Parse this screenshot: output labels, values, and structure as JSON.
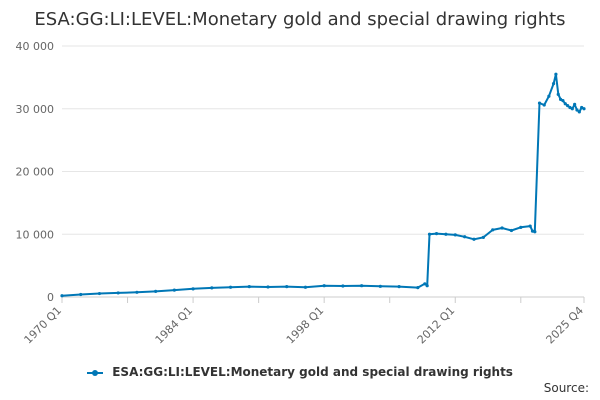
{
  "chart_data": {
    "type": "line",
    "title": "ESA:GG:LI:LEVEL:Monetary gold and special drawing rights",
    "xlabel": "",
    "ylabel": "",
    "ylim": [
      0,
      40000
    ],
    "yticks": [
      0,
      10000,
      20000,
      30000,
      40000
    ],
    "ytick_labels": [
      "0",
      "10 000",
      "20 000",
      "30 000",
      "40 000"
    ],
    "xrange": [
      "1970 Q1",
      "2025 Q4"
    ],
    "xticks": [
      "1970 Q1",
      "1984 Q1",
      "1998 Q1",
      "2012 Q1",
      "2025 Q4"
    ],
    "grid": true,
    "legend_position": "bottom",
    "series": [
      {
        "name": "ESA:GG:LI:LEVEL:Monetary gold and special drawing rights",
        "color": "#0077b6",
        "x": [
          "1970 Q1",
          "1972 Q1",
          "1974 Q1",
          "1976 Q1",
          "1978 Q1",
          "1980 Q1",
          "1982 Q1",
          "1984 Q1",
          "1986 Q1",
          "1988 Q1",
          "1990 Q1",
          "1992 Q1",
          "1994 Q1",
          "1996 Q1",
          "1998 Q1",
          "2000 Q1",
          "2002 Q1",
          "2004 Q1",
          "2006 Q1",
          "2008 Q1",
          "2008 Q4",
          "2009 Q1",
          "2009 Q2",
          "2010 Q1",
          "2011 Q1",
          "2012 Q1",
          "2013 Q1",
          "2014 Q1",
          "2015 Q1",
          "2016 Q1",
          "2017 Q1",
          "2018 Q1",
          "2019 Q1",
          "2020 Q1",
          "2020 Q2",
          "2020 Q3",
          "2021 Q1",
          "2021 Q3",
          "2022 Q1",
          "2022 Q3",
          "2022 Q4",
          "2023 Q1",
          "2023 Q2",
          "2023 Q3",
          "2023 Q4",
          "2024 Q1",
          "2024 Q2",
          "2024 Q3",
          "2024 Q4",
          "2025 Q1",
          "2025 Q2",
          "2025 Q3",
          "2025 Q4"
        ],
        "values": [
          200,
          400,
          550,
          650,
          750,
          900,
          1100,
          1300,
          1450,
          1550,
          1650,
          1600,
          1650,
          1550,
          1800,
          1750,
          1800,
          1700,
          1650,
          1500,
          2100,
          1800,
          10000,
          10100,
          10000,
          9900,
          9600,
          9200,
          9500,
          10700,
          11000,
          10600,
          11100,
          11300,
          10500,
          10400,
          30900,
          30600,
          32000,
          34000,
          35500,
          32300,
          31500,
          31300,
          30800,
          30500,
          30200,
          30000,
          30700,
          29800,
          29500,
          30200,
          30000
        ]
      }
    ]
  },
  "source_label": "Source:"
}
